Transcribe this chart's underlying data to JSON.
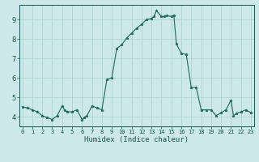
{
  "x": [
    0,
    0.5,
    1,
    1.5,
    2,
    2.5,
    3,
    3.5,
    4,
    4.25,
    4.5,
    5,
    5.5,
    6,
    6.25,
    6.5,
    7,
    7.5,
    8,
    8.5,
    9,
    9.5,
    10,
    10.5,
    11,
    11.5,
    12,
    12.5,
    13,
    13.25,
    13.5,
    14,
    14.25,
    14.5,
    15,
    15.25,
    15.5,
    16,
    16.5,
    17,
    17.5,
    18,
    18.5,
    19,
    19.5,
    20,
    20.5,
    21,
    21.25,
    21.5,
    22,
    22.5,
    23
  ],
  "y": [
    4.5,
    4.45,
    4.35,
    4.25,
    4.05,
    3.95,
    3.85,
    4.05,
    4.55,
    4.35,
    4.25,
    4.25,
    4.35,
    3.85,
    3.95,
    4.05,
    4.55,
    4.45,
    4.35,
    5.9,
    6.0,
    7.5,
    7.7,
    8.05,
    8.3,
    8.55,
    8.75,
    9.0,
    9.05,
    9.15,
    9.45,
    9.15,
    9.15,
    9.2,
    9.15,
    9.2,
    7.75,
    7.25,
    7.2,
    5.5,
    5.5,
    4.35,
    4.35,
    4.35,
    4.05,
    4.2,
    4.35,
    4.85,
    4.05,
    4.15,
    4.25,
    4.35,
    4.2
  ],
  "line_color": "#1a6b5a",
  "marker": "*",
  "marker_color": "#1a6b5a",
  "bg_color": "#cce8e8",
  "grid_color": "#aacfcf",
  "tick_color": "#1a5555",
  "xlabel": "Humidex (Indice chaleur)",
  "xlabel_color": "#1a5555",
  "xlim": [
    -0.3,
    23.3
  ],
  "ylim": [
    3.5,
    9.75
  ],
  "yticks": [
    4,
    5,
    6,
    7,
    8,
    9
  ],
  "xticks": [
    0,
    1,
    2,
    3,
    4,
    5,
    6,
    7,
    8,
    9,
    10,
    11,
    12,
    13,
    14,
    15,
    16,
    17,
    18,
    19,
    20,
    21,
    22,
    23
  ]
}
